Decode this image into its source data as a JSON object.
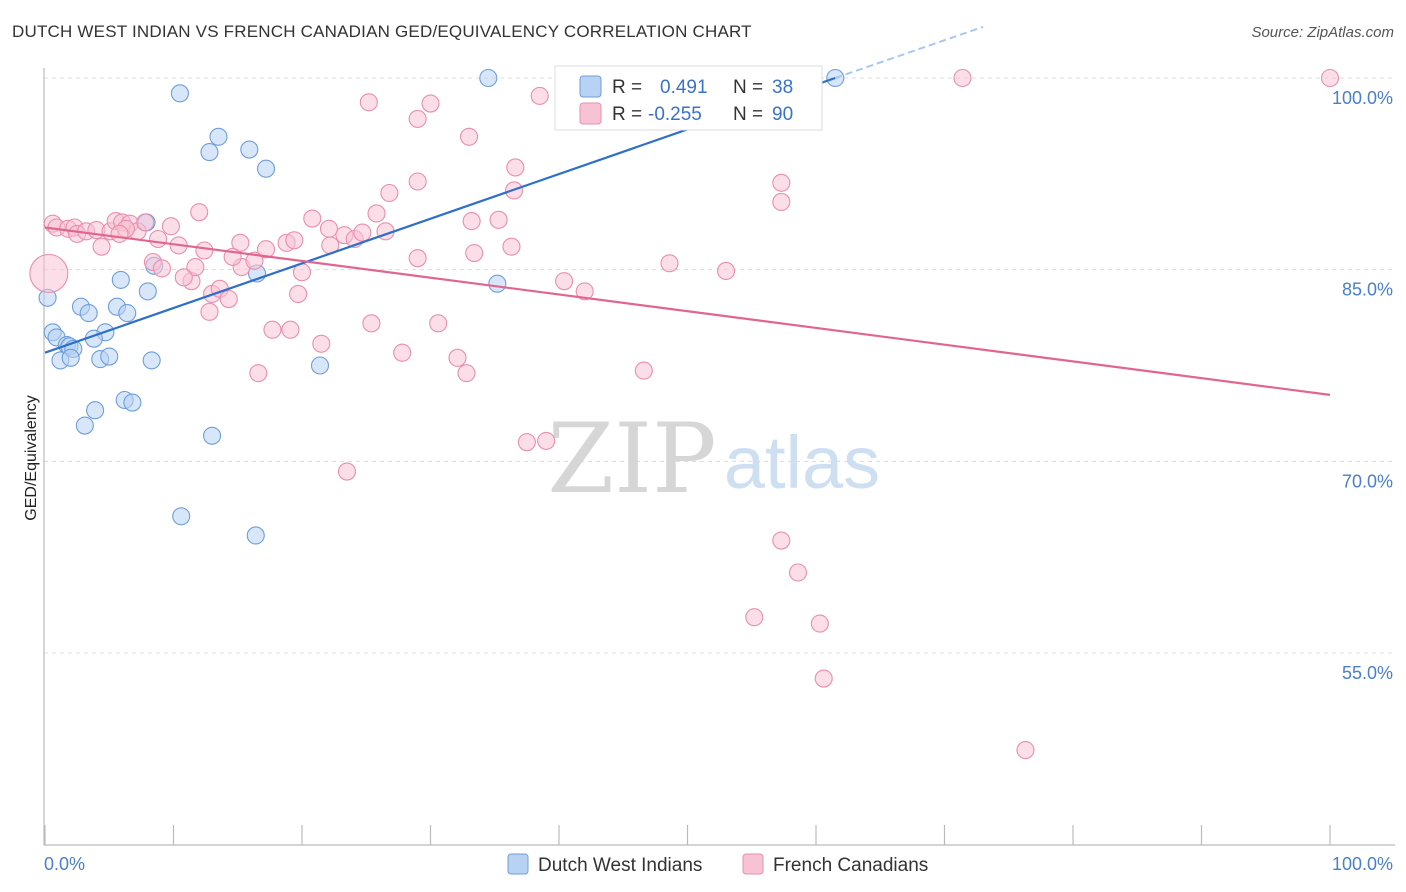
{
  "title": "DUTCH WEST INDIAN VS FRENCH CANADIAN GED/EQUIVALENCY CORRELATION CHART",
  "source": "Source: ZipAtlas.com",
  "watermark": {
    "zip": "ZIP",
    "atlas": "atlas"
  },
  "chart_data": {
    "type": "scatter",
    "xlabel": "",
    "ylabel": "GED/Equivalency",
    "xlim": [
      0,
      100
    ],
    "ylim": [
      41,
      101.5
    ],
    "x_tick_labels": [
      {
        "value": 0,
        "label": "0.0%"
      },
      {
        "value": 100,
        "label": "100.0%"
      }
    ],
    "y_ticks": [
      {
        "value": 55,
        "label": "55.0%"
      },
      {
        "value": 70,
        "label": "70.0%"
      },
      {
        "value": 85,
        "label": "85.0%"
      },
      {
        "value": 100,
        "label": "100.0%"
      }
    ],
    "grid": true,
    "legend_position": "bottom-center",
    "stats_legend": [
      {
        "r_label": "R =",
        "r_value": "0.491",
        "n_label": "N =",
        "n_value": "38",
        "color": "#a9c8f0"
      },
      {
        "r_label": "R =",
        "r_value": "-0.255",
        "n_label": "N =",
        "n_value": "90",
        "color": "#f6b8cc"
      }
    ],
    "series": [
      {
        "name": "Dutch West Indians",
        "fill": "#b7d2f3",
        "stroke": "#6f9ed9",
        "trend_color": "#2e6fcb",
        "trend": {
          "x0": 0,
          "y0": 78.5,
          "x1": 61.5,
          "y1": 100
        },
        "trend_ext": {
          "x0": 61.5,
          "y0": 100,
          "x1": 73,
          "y1": 104
        },
        "points": [
          [
            34.5,
            100
          ],
          [
            61.5,
            100
          ],
          [
            10.5,
            98.8
          ],
          [
            13.5,
            95.4
          ],
          [
            12.8,
            94.2
          ],
          [
            15.9,
            94.4
          ],
          [
            17.2,
            92.9
          ],
          [
            7.9,
            88.7
          ],
          [
            8.5,
            85.3
          ],
          [
            16.5,
            84.7
          ],
          [
            5.9,
            84.2
          ],
          [
            8.0,
            83.3
          ],
          [
            35.2,
            83.9
          ],
          [
            0.2,
            82.8
          ],
          [
            2.8,
            82.1
          ],
          [
            5.6,
            82.1
          ],
          [
            3.4,
            81.6
          ],
          [
            6.4,
            81.6
          ],
          [
            0.6,
            80.1
          ],
          [
            0.9,
            79.7
          ],
          [
            4.7,
            80.1
          ],
          [
            1.7,
            79.1
          ],
          [
            1.9,
            79.0
          ],
          [
            3.8,
            79.6
          ],
          [
            2.2,
            78.8
          ],
          [
            1.2,
            77.9
          ],
          [
            2.0,
            78.1
          ],
          [
            4.3,
            78.0
          ],
          [
            5.0,
            78.2
          ],
          [
            8.3,
            77.9
          ],
          [
            21.4,
            77.5
          ],
          [
            6.2,
            74.8
          ],
          [
            6.8,
            74.6
          ],
          [
            3.9,
            74.0
          ],
          [
            3.1,
            72.8
          ],
          [
            13.0,
            72.0
          ],
          [
            10.6,
            65.7
          ],
          [
            16.4,
            64.2
          ]
        ]
      },
      {
        "name": "French Canadians",
        "fill": "#f7c3d4",
        "stroke": "#e98fae",
        "trend_color": "#e0668f",
        "trend": {
          "x0": 0,
          "y0": 88.3,
          "x1": 100,
          "y1": 75.2
        },
        "points": [
          [
            47.8,
            100
          ],
          [
            71.4,
            100
          ],
          [
            100,
            100
          ],
          [
            38.5,
            98.6
          ],
          [
            25.2,
            98.1
          ],
          [
            30.0,
            98.0
          ],
          [
            29.0,
            96.8
          ],
          [
            33.0,
            95.4
          ],
          [
            36.6,
            93.0
          ],
          [
            29.0,
            91.9
          ],
          [
            57.3,
            91.8
          ],
          [
            26.8,
            91.0
          ],
          [
            36.5,
            91.2
          ],
          [
            57.3,
            90.3
          ],
          [
            0.6,
            88.6
          ],
          [
            0.9,
            88.3
          ],
          [
            1.8,
            88.2
          ],
          [
            2.3,
            88.3
          ],
          [
            2.5,
            87.8
          ],
          [
            3.2,
            88.0
          ],
          [
            4.0,
            88.1
          ],
          [
            5.1,
            88.0
          ],
          [
            5.5,
            88.8
          ],
          [
            6.0,
            88.7
          ],
          [
            6.6,
            88.6
          ],
          [
            7.2,
            88.0
          ],
          [
            7.8,
            88.7
          ],
          [
            9.8,
            88.4
          ],
          [
            12.0,
            89.5
          ],
          [
            20.8,
            89.0
          ],
          [
            25.8,
            89.4
          ],
          [
            33.2,
            88.8
          ],
          [
            35.3,
            88.9
          ],
          [
            22.1,
            88.2
          ],
          [
            23.3,
            87.7
          ],
          [
            24.1,
            87.4
          ],
          [
            24.7,
            87.9
          ],
          [
            26.5,
            88.0
          ],
          [
            4.4,
            86.8
          ],
          [
            8.8,
            87.4
          ],
          [
            10.4,
            86.9
          ],
          [
            12.4,
            86.5
          ],
          [
            15.2,
            87.1
          ],
          [
            17.2,
            86.6
          ],
          [
            18.8,
            87.1
          ],
          [
            19.4,
            87.3
          ],
          [
            22.2,
            86.9
          ],
          [
            33.4,
            86.3
          ],
          [
            36.3,
            86.8
          ],
          [
            29.0,
            85.9
          ],
          [
            8.4,
            85.6
          ],
          [
            9.1,
            85.1
          ],
          [
            11.4,
            84.1
          ],
          [
            11.7,
            85.2
          ],
          [
            15.3,
            85.2
          ],
          [
            16.3,
            85.7
          ],
          [
            20.0,
            84.8
          ],
          [
            48.6,
            85.5
          ],
          [
            53.0,
            84.9
          ],
          [
            40.4,
            84.1
          ],
          [
            42.0,
            83.3
          ],
          [
            13.0,
            83.1
          ],
          [
            13.6,
            83.5
          ],
          [
            14.3,
            82.7
          ],
          [
            19.7,
            83.1
          ],
          [
            12.8,
            81.7
          ],
          [
            17.7,
            80.3
          ],
          [
            19.1,
            80.3
          ],
          [
            25.4,
            80.8
          ],
          [
            30.6,
            80.8
          ],
          [
            21.5,
            79.2
          ],
          [
            27.8,
            78.5
          ],
          [
            32.1,
            78.1
          ],
          [
            32.8,
            76.9
          ],
          [
            16.6,
            76.9
          ],
          [
            46.6,
            77.1
          ],
          [
            37.5,
            71.5
          ],
          [
            39.0,
            71.6
          ],
          [
            23.5,
            69.2
          ],
          [
            57.3,
            63.8
          ],
          [
            58.6,
            61.3
          ],
          [
            55.2,
            57.8
          ],
          [
            60.3,
            57.3
          ],
          [
            60.6,
            53.0
          ],
          [
            76.3,
            47.4
          ],
          [
            0.3,
            84.7
          ],
          [
            6.3,
            88.2
          ],
          [
            10.8,
            84.4
          ],
          [
            5.8,
            87.8
          ],
          [
            14.6,
            86.0
          ]
        ]
      }
    ]
  }
}
